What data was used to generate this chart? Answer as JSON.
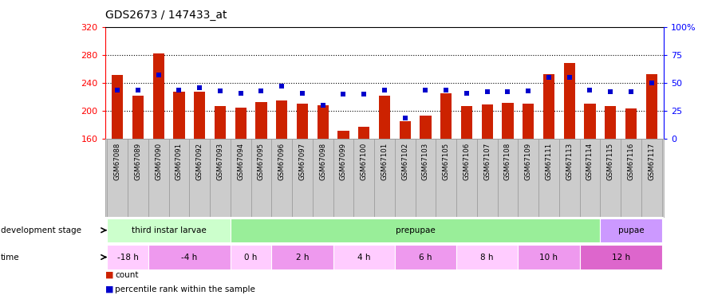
{
  "title": "GDS2673 / 147433_at",
  "samples": [
    "GSM67088",
    "GSM67089",
    "GSM67090",
    "GSM67091",
    "GSM67092",
    "GSM67093",
    "GSM67094",
    "GSM67095",
    "GSM67096",
    "GSM67097",
    "GSM67098",
    "GSM67099",
    "GSM67100",
    "GSM67101",
    "GSM67102",
    "GSM67103",
    "GSM67105",
    "GSM67106",
    "GSM67107",
    "GSM67108",
    "GSM67109",
    "GSM67111",
    "GSM67113",
    "GSM67114",
    "GSM67115",
    "GSM67116",
    "GSM67117"
  ],
  "counts": [
    252,
    222,
    282,
    228,
    228,
    207,
    205,
    213,
    215,
    210,
    208,
    172,
    178,
    222,
    185,
    193,
    225,
    207,
    209,
    212,
    211,
    253,
    268,
    210,
    207,
    204,
    253
  ],
  "percentiles": [
    44,
    44,
    57,
    44,
    46,
    43,
    41,
    43,
    47,
    41,
    30,
    40,
    40,
    44,
    19,
    44,
    44,
    41,
    42,
    42,
    43,
    55,
    55,
    44,
    42,
    42,
    50
  ],
  "yticks_left": [
    160,
    200,
    240,
    280,
    320
  ],
  "yticks_right": [
    0,
    25,
    50,
    75,
    100
  ],
  "bar_color": "#cc2200",
  "dot_color": "#0000cc",
  "dev_stages": [
    {
      "label": "third instar larvae",
      "start": 0,
      "end": 6,
      "color": "#ccffcc"
    },
    {
      "label": "prepupae",
      "start": 6,
      "end": 24,
      "color": "#99ee99"
    },
    {
      "label": "pupae",
      "start": 24,
      "end": 27,
      "color": "#cc99ff"
    }
  ],
  "time_groups": [
    {
      "label": "-18 h",
      "start": 0,
      "end": 2,
      "color": "#ffccff"
    },
    {
      "label": "-4 h",
      "start": 2,
      "end": 6,
      "color": "#ee99ee"
    },
    {
      "label": "0 h",
      "start": 6,
      "end": 8,
      "color": "#ffccff"
    },
    {
      "label": "2 h",
      "start": 8,
      "end": 11,
      "color": "#ee99ee"
    },
    {
      "label": "4 h",
      "start": 11,
      "end": 14,
      "color": "#ffccff"
    },
    {
      "label": "6 h",
      "start": 14,
      "end": 17,
      "color": "#ee99ee"
    },
    {
      "label": "8 h",
      "start": 17,
      "end": 20,
      "color": "#ffccff"
    },
    {
      "label": "10 h",
      "start": 20,
      "end": 23,
      "color": "#ee99ee"
    },
    {
      "label": "12 h",
      "start": 23,
      "end": 27,
      "color": "#dd66cc"
    }
  ],
  "tick_bg_color": "#cccccc",
  "tick_border_color": "#999999"
}
